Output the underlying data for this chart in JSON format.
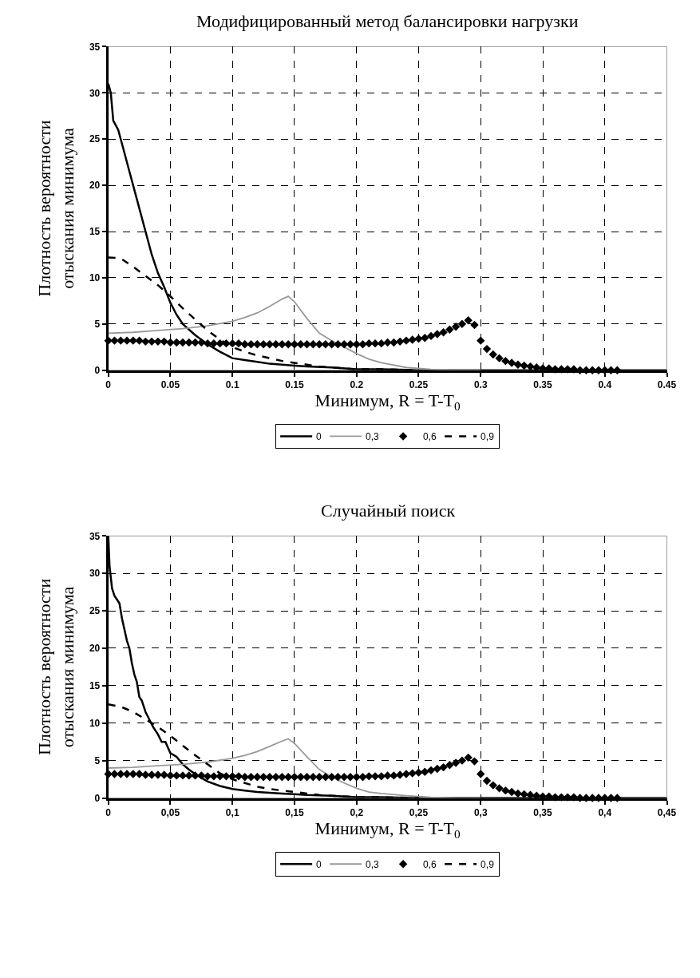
{
  "chart_data": [
    {
      "type": "line",
      "title": "Модифицированный метод балансировки нагрузки",
      "xlabel": "Минимум, R = T-T$_{0}$",
      "ylabel": "Плотность вероятности\nотыскания минимума",
      "xlim": [
        0,
        0.45
      ],
      "ylim": [
        0,
        35
      ],
      "xticks": [
        0,
        0.05,
        0.1,
        0.15,
        0.2,
        0.25,
        0.3,
        0.35,
        0.4,
        0.45
      ],
      "yticks": [
        0,
        5,
        10,
        15,
        20,
        25,
        30,
        35
      ],
      "grid": true,
      "legend": "bottom",
      "series": [
        {
          "name": "0",
          "color": "#000000",
          "line_style": "solid",
          "marker": "none",
          "x": [
            0,
            0.002,
            0.004,
            0.008,
            0.012,
            0.016,
            0.02,
            0.025,
            0.03,
            0.035,
            0.04,
            0.045,
            0.05,
            0.055,
            0.06,
            0.07,
            0.08,
            0.09,
            0.1,
            0.11,
            0.12,
            0.13,
            0.14,
            0.15,
            0.16,
            0.18,
            0.2,
            0.22,
            0.25,
            0.3,
            0.35,
            0.4,
            0.45
          ],
          "values": [
            31,
            30,
            27,
            26,
            24,
            22,
            20,
            17.5,
            15,
            12.5,
            10.5,
            9,
            7.3,
            6,
            5,
            3.8,
            2.8,
            2,
            1.3,
            1.1,
            0.9,
            0.7,
            0.6,
            0.5,
            0.4,
            0.3,
            0.1,
            0.1,
            0,
            0,
            0,
            0,
            0
          ]
        },
        {
          "name": "0,3",
          "color": "#999999",
          "line_style": "solid",
          "marker": "none",
          "x": [
            0,
            0.02,
            0.04,
            0.06,
            0.08,
            0.1,
            0.11,
            0.12,
            0.13,
            0.14,
            0.145,
            0.15,
            0.16,
            0.17,
            0.18,
            0.19,
            0.2,
            0.21,
            0.22,
            0.24,
            0.26,
            0.28,
            0.3
          ],
          "values": [
            4,
            4.1,
            4.3,
            4.5,
            4.8,
            5.3,
            5.7,
            6.2,
            6.9,
            7.7,
            8,
            7.4,
            5.6,
            4,
            3.2,
            2.5,
            1.8,
            1.2,
            0.8,
            0.3,
            0.1,
            0,
            0
          ]
        },
        {
          "name": "0,6",
          "type": "scatter",
          "color": "#000000",
          "marker": "diamond",
          "x": [
            0,
            0.005,
            0.01,
            0.015,
            0.02,
            0.025,
            0.03,
            0.035,
            0.04,
            0.045,
            0.05,
            0.055,
            0.06,
            0.065,
            0.07,
            0.075,
            0.08,
            0.085,
            0.09,
            0.095,
            0.1,
            0.105,
            0.11,
            0.115,
            0.12,
            0.125,
            0.13,
            0.135,
            0.14,
            0.145,
            0.15,
            0.155,
            0.16,
            0.165,
            0.17,
            0.175,
            0.18,
            0.185,
            0.19,
            0.195,
            0.2,
            0.205,
            0.21,
            0.215,
            0.22,
            0.225,
            0.23,
            0.235,
            0.24,
            0.245,
            0.25,
            0.255,
            0.26,
            0.265,
            0.27,
            0.275,
            0.28,
            0.285,
            0.29,
            0.295,
            0.3,
            0.305,
            0.31,
            0.315,
            0.32,
            0.325,
            0.33,
            0.335,
            0.34,
            0.345,
            0.35,
            0.355,
            0.36,
            0.365,
            0.37,
            0.375,
            0.38,
            0.385,
            0.39,
            0.395,
            0.4,
            0.405,
            0.41
          ],
          "values": [
            3.2,
            3.2,
            3.2,
            3.2,
            3.2,
            3.2,
            3.1,
            3.1,
            3.1,
            3.1,
            3,
            3,
            3,
            3,
            3,
            3,
            2.9,
            2.9,
            2.9,
            2.9,
            2.9,
            2.9,
            2.8,
            2.8,
            2.8,
            2.8,
            2.8,
            2.8,
            2.8,
            2.8,
            2.8,
            2.8,
            2.8,
            2.8,
            2.8,
            2.8,
            2.8,
            2.8,
            2.8,
            2.8,
            2.8,
            2.8,
            2.9,
            2.9,
            2.9,
            3,
            3,
            3.1,
            3.2,
            3.3,
            3.4,
            3.5,
            3.7,
            3.9,
            4.1,
            4.4,
            4.7,
            5,
            5.4,
            4.9,
            3.2,
            2.3,
            1.7,
            1.3,
            1,
            0.8,
            0.6,
            0.5,
            0.4,
            0.3,
            0.2,
            0.2,
            0.1,
            0.1,
            0.1,
            0.1,
            0,
            0,
            0,
            0,
            0,
            0,
            0
          ]
        },
        {
          "name": "0,9",
          "color": "#000000",
          "line_style": "dashed",
          "marker": "none",
          "x": [
            0,
            0.01,
            0.02,
            0.03,
            0.04,
            0.05,
            0.06,
            0.07,
            0.08,
            0.09,
            0.1,
            0.11,
            0.12,
            0.13,
            0.14,
            0.15,
            0.16,
            0.17,
            0.18,
            0.2,
            0.22,
            0.25
          ],
          "values": [
            12.2,
            12.1,
            11.2,
            10.2,
            9.2,
            8,
            6.7,
            5.5,
            4.3,
            3.3,
            2.5,
            2,
            1.6,
            1.3,
            1,
            0.8,
            0.6,
            0.4,
            0.3,
            0.1,
            0.1,
            0
          ]
        }
      ]
    },
    {
      "type": "line",
      "title": "Случайный поиск",
      "xlabel": "Минимум, R = T-T$_{0}$",
      "ylabel": "Плотность вероятности\nотыскания минимума",
      "xlim": [
        0,
        0.45
      ],
      "ylim": [
        0,
        35
      ],
      "xticks": [
        0,
        {
          "value": 0.05,
          "label": "0,05"
        },
        {
          "value": 0.1,
          "label": "0,1"
        },
        {
          "value": 0.15,
          "label": "0,15"
        },
        {
          "value": 0.2,
          "label": "0,2"
        },
        {
          "value": 0.25,
          "label": "0,25"
        },
        {
          "value": 0.3,
          "label": "0,3"
        },
        {
          "value": 0.35,
          "label": "0,35"
        },
        {
          "value": 0.4,
          "label": "0,4"
        },
        {
          "value": 0.45,
          "label": "0,45"
        }
      ],
      "yticks": [
        0,
        5,
        10,
        15,
        20,
        25,
        30,
        35
      ],
      "grid": true,
      "legend": "bottom",
      "series": [
        {
          "name": "0",
          "color": "#000000",
          "line_style": "solid",
          "marker": "none",
          "x": [
            0,
            0.001,
            0.003,
            0.005,
            0.007,
            0.009,
            0.011,
            0.013,
            0.015,
            0.017,
            0.019,
            0.021,
            0.023,
            0.025,
            0.027,
            0.03,
            0.033,
            0.036,
            0.04,
            0.043,
            0.046,
            0.05,
            0.055,
            0.06,
            0.065,
            0.07,
            0.08,
            0.09,
            0.1,
            0.11,
            0.12,
            0.13,
            0.14,
            0.15,
            0.16,
            0.18,
            0.2,
            0.22,
            0.25,
            0.3,
            0.35,
            0.4,
            0.45
          ],
          "values": [
            35,
            31,
            28,
            27,
            26.5,
            26,
            24,
            22.5,
            21,
            20,
            18,
            16.5,
            15.5,
            13.5,
            13,
            11.5,
            10.5,
            9.5,
            8.5,
            7.5,
            7.5,
            6,
            5.5,
            4.5,
            3.8,
            3.2,
            2.2,
            1.6,
            1.2,
            1,
            0.8,
            0.7,
            0.6,
            0.5,
            0.4,
            0.3,
            0.1,
            0.1,
            0,
            0,
            0,
            0,
            0
          ]
        },
        {
          "name": "0,3",
          "color": "#999999",
          "line_style": "solid",
          "marker": "none",
          "x": [
            0,
            0.02,
            0.04,
            0.06,
            0.08,
            0.1,
            0.11,
            0.12,
            0.13,
            0.14,
            0.145,
            0.15,
            0.16,
            0.17,
            0.18,
            0.19,
            0.2,
            0.21,
            0.22,
            0.24,
            0.26,
            0.28,
            0.3
          ],
          "values": [
            4,
            4.1,
            4.3,
            4.5,
            4.8,
            5.3,
            5.7,
            6.2,
            6.9,
            7.6,
            7.9,
            7.3,
            5.5,
            3.8,
            2.8,
            2,
            1.3,
            0.8,
            0.6,
            0.3,
            0.1,
            0,
            0
          ]
        },
        {
          "name": "0,6",
          "type": "scatter",
          "color": "#000000",
          "marker": "diamond",
          "x": [
            0,
            0.005,
            0.01,
            0.015,
            0.02,
            0.025,
            0.03,
            0.035,
            0.04,
            0.045,
            0.05,
            0.055,
            0.06,
            0.065,
            0.07,
            0.075,
            0.08,
            0.085,
            0.09,
            0.095,
            0.1,
            0.105,
            0.11,
            0.115,
            0.12,
            0.125,
            0.13,
            0.135,
            0.14,
            0.145,
            0.15,
            0.155,
            0.16,
            0.165,
            0.17,
            0.175,
            0.18,
            0.185,
            0.19,
            0.195,
            0.2,
            0.205,
            0.21,
            0.215,
            0.22,
            0.225,
            0.23,
            0.235,
            0.24,
            0.245,
            0.25,
            0.255,
            0.26,
            0.265,
            0.27,
            0.275,
            0.28,
            0.285,
            0.29,
            0.295,
            0.3,
            0.305,
            0.31,
            0.315,
            0.32,
            0.325,
            0.33,
            0.335,
            0.34,
            0.345,
            0.35,
            0.355,
            0.36,
            0.365,
            0.37,
            0.375,
            0.38,
            0.385,
            0.39,
            0.395,
            0.4,
            0.405,
            0.41
          ],
          "values": [
            3.2,
            3.2,
            3.2,
            3.2,
            3.2,
            3.2,
            3.1,
            3.1,
            3.1,
            3.1,
            3,
            3,
            3,
            3,
            3,
            3,
            2.9,
            2.9,
            2.9,
            2.9,
            2.9,
            2.9,
            2.8,
            2.8,
            2.8,
            2.8,
            2.8,
            2.8,
            2.8,
            2.8,
            2.8,
            2.8,
            2.8,
            2.8,
            2.8,
            2.8,
            2.8,
            2.8,
            2.8,
            2.8,
            2.8,
            2.8,
            2.9,
            2.9,
            2.9,
            3,
            3,
            3.1,
            3.2,
            3.3,
            3.4,
            3.5,
            3.7,
            3.9,
            4.1,
            4.4,
            4.7,
            5,
            5.4,
            4.9,
            3.2,
            2.3,
            1.7,
            1.3,
            1,
            0.8,
            0.6,
            0.5,
            0.4,
            0.3,
            0.2,
            0.2,
            0.1,
            0.1,
            0.1,
            0.1,
            0,
            0,
            0,
            0,
            0,
            0,
            0
          ]
        },
        {
          "name": "0,9",
          "color": "#000000",
          "line_style": "dashed",
          "marker": "none",
          "x": [
            0,
            0.01,
            0.02,
            0.03,
            0.04,
            0.05,
            0.06,
            0.07,
            0.08,
            0.09,
            0.1,
            0.11,
            0.12,
            0.13,
            0.14,
            0.15,
            0.16,
            0.17,
            0.18,
            0.2,
            0.22,
            0.25
          ],
          "values": [
            12.5,
            12.2,
            11.5,
            10.5,
            9.5,
            8.3,
            7,
            5.7,
            4.5,
            3.3,
            2.5,
            2,
            1.5,
            1.2,
            1,
            0.8,
            0.6,
            0.4,
            0.3,
            0.1,
            0.1,
            0
          ]
        }
      ]
    }
  ]
}
